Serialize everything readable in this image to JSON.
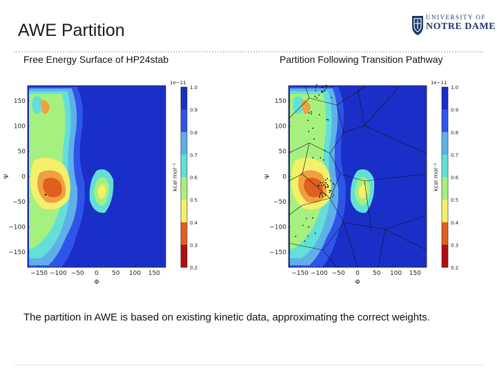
{
  "slide": {
    "title": "AWE Partition",
    "body_text": "The partition in AWE is based on existing kinetic data, approximating the correct weights."
  },
  "logo": {
    "line1": "UNIVERSITY OF",
    "line2": "NOTRE DAME"
  },
  "panels": [
    {
      "caption": "Free Energy Surface of HP24stab"
    },
    {
      "caption": "Partition Following Transition Pathway"
    }
  ],
  "colors": {
    "dark_blue": "#1a2fc8",
    "blue": "#2f55e8",
    "sky": "#5fb0e8",
    "cyan": "#62e0d8",
    "green": "#a6f080",
    "yellow": "#f4f06a",
    "orange": "#f0a040",
    "red_orange": "#e0601e",
    "dark_red": "#b01010",
    "notre_dame_navy": "#1f3a6e"
  },
  "chart_data": [
    {
      "type": "heatmap",
      "xlabel": "Φ",
      "ylabel": "Ψ",
      "xlim": [
        -180,
        180
      ],
      "ylim": [
        -180,
        180
      ],
      "xticks": [
        "−150",
        "−100",
        "−50",
        "0",
        "50",
        "100",
        "150"
      ],
      "yticks": [
        "150",
        "100",
        "50",
        "0",
        "−50",
        "−100",
        "−150"
      ],
      "colorbar": {
        "exponent": "1e−11",
        "label": "kcal mol⁻¹",
        "ticks": [
          "1.0",
          "0.9",
          "0.8",
          "0.7",
          "0.6",
          "0.5",
          "0.4",
          "0.3",
          "0.2"
        ]
      },
      "overlay": "none"
    },
    {
      "type": "heatmap",
      "xlabel": "Φ",
      "ylabel": "Ψ",
      "xlim": [
        -180,
        180
      ],
      "ylim": [
        -180,
        180
      ],
      "xticks": [
        "−150",
        "−100",
        "−50",
        "0",
        "50",
        "100",
        "150"
      ],
      "yticks": [
        "150",
        "100",
        "50",
        "0",
        "−50",
        "−100",
        "−150"
      ],
      "colorbar": {
        "exponent": "1e−11",
        "label": "kcal mol⁻¹",
        "ticks": [
          "1.0",
          "0.9",
          "0.8",
          "0.7",
          "0.6",
          "0.5",
          "0.4",
          "0.3",
          "0.2"
        ]
      },
      "overlay": "voronoi-partition"
    }
  ]
}
